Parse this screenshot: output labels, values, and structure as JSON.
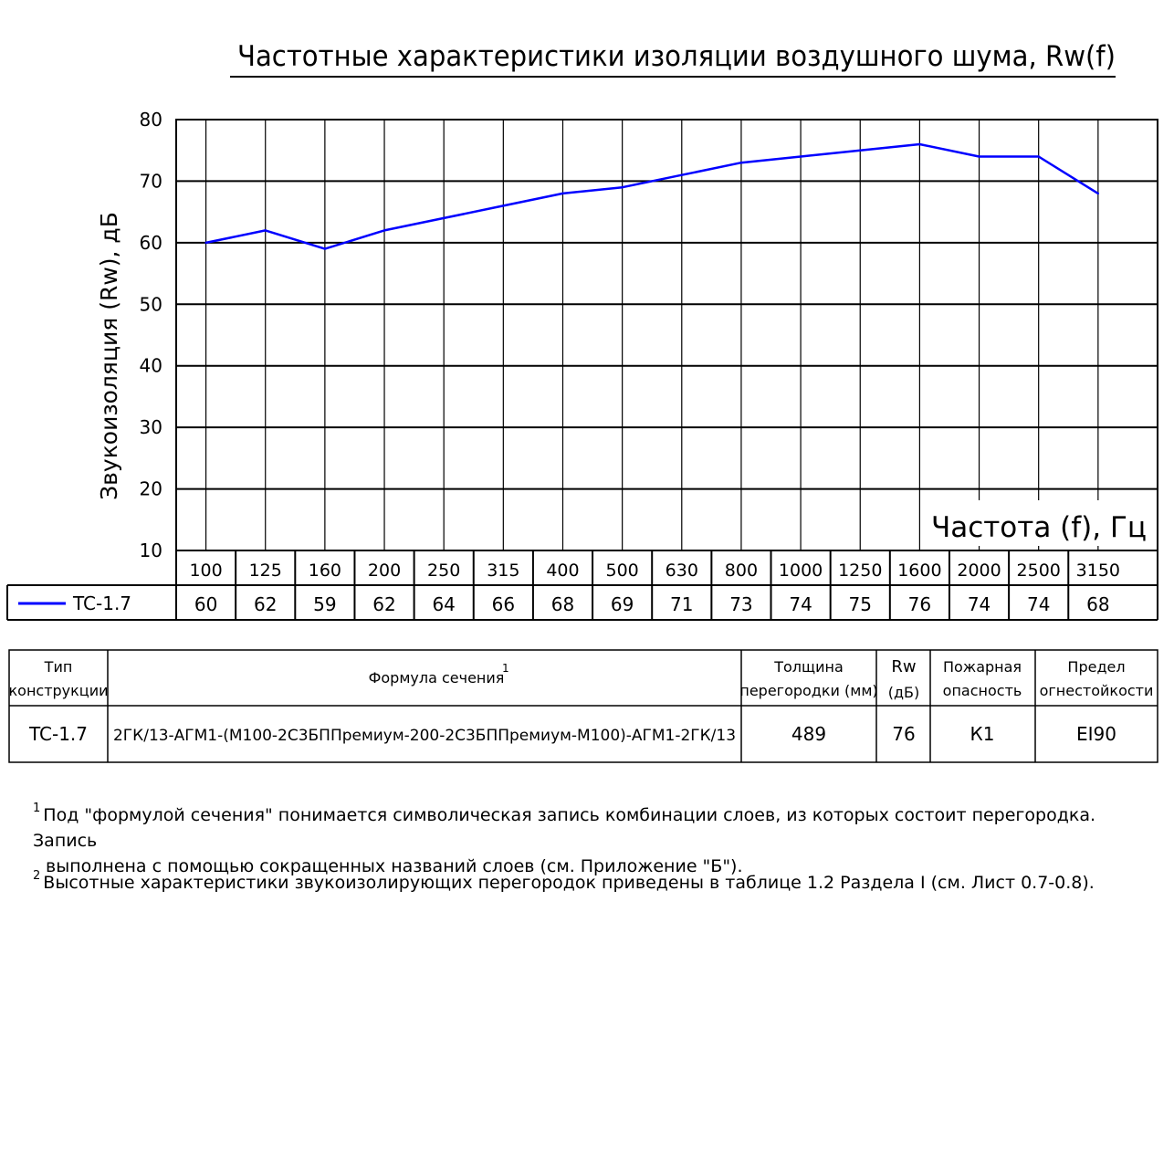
{
  "chart_data": {
    "type": "line",
    "title": "Частотные характеристики изоляции воздушного шума, Rw(f)",
    "xlabel": "Частота (f), Гц",
    "ylabel": "Звукоизоляция (Rw), дБ",
    "ylim": [
      10,
      80
    ],
    "y_ticks": [
      "80",
      "70",
      "60",
      "50",
      "40",
      "30",
      "20",
      "10"
    ],
    "categories": [
      "100",
      "125",
      "160",
      "200",
      "250",
      "315",
      "400",
      "500",
      "630",
      "800",
      "1000",
      "1250",
      "1600",
      "2000",
      "2500",
      "3150"
    ],
    "grid": true,
    "series": [
      {
        "name": "TC-1.7",
        "color": "#0000ff",
        "values": [
          60,
          62,
          59,
          62,
          64,
          66,
          68,
          69,
          71,
          73,
          74,
          75,
          76,
          74,
          74,
          68
        ]
      }
    ]
  },
  "spec_table": {
    "headers": {
      "type": [
        "Тип",
        "конструкции"
      ],
      "formula": "Формула сечения",
      "formula_note": "1",
      "thickness": [
        "Толщина",
        "перегородки (мм)"
      ],
      "rw": [
        "Rw",
        "(дБ)"
      ],
      "fire_hazard": [
        "Пожарная",
        "опасность"
      ],
      "fire_resistance": [
        "Предел",
        "огнестойкости"
      ]
    },
    "row": {
      "type": "TC-1.7",
      "formula": "2ГК/13-АГМ1-(М100-2С3БППремиум-200-2С3БППремиум-М100)-АГМ1-2ГК/13",
      "thickness": "489",
      "rw": "76",
      "fire_hazard": "К1",
      "fire_resistance": "EI90"
    }
  },
  "footnotes": {
    "note1_mark": "1",
    "note1_line1": "Под \"формулой сечения\" понимается символическая запись комбинации слоев, из которых состоит перегородка. Запись",
    "note1_line2": "выполнена с помощью сокращенных названий слоев (см. Приложение \"Б\").",
    "note2_mark": "2",
    "note2_text": "Высотные характеристики звукоизолирующих перегородок приведены в таблице 1.2 Раздела I (см. Лист 0.7-0.8)."
  }
}
